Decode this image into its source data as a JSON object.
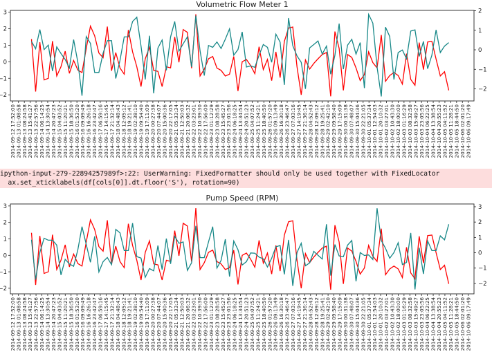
{
  "warning": {
    "line1": "ipython-input-279-22894257989f>:22: UserWarning: FixedFormatter should only be used together with FixedLocator",
    "line2": "  ax.set_xticklabels(df[cols[0]].dt.floor('S'), rotation=90)"
  },
  "xtick_labels": [
    "2014-09-12 17:52:00",
    "2014-09-13 01:08:58",
    "2014-09-13 08:24:58",
    "2014-09-13 15:41:27",
    "2014-09-13 22:57:56",
    "2014-09-14 06:14:25",
    "2014-09-14 13:30:54",
    "2014-09-14 20:47:23",
    "2014-09-15 04:03:52",
    "2014-09-15 11:20:21",
    "2014-09-15 18:36:50",
    "2014-09-16 01:53:20",
    "2014-09-16 09:09:49",
    "2014-09-16 16:26:18",
    "2014-09-16 23:42:47",
    "2014-09-17 06:59:16",
    "2014-09-17 14:15:45",
    "2014-09-17 21:32:14",
    "2014-09-18 04:48:43",
    "2014-09-18 12:05:12",
    "2014-09-18 19:21:41",
    "2014-09-19 02:38:10",
    "2014-09-19 09:54:40",
    "2014-09-19 17:11:09",
    "2014-09-20 00:27:38",
    "2014-09-20 07:44:07",
    "2014-09-20 15:00:36",
    "2014-09-20 22:17:05",
    "2014-09-21 05:33:34",
    "2014-09-21 12:50:03",
    "2014-09-21 20:06:32",
    "2014-09-22 03:23:01",
    "2014-09-22 10:39:30",
    "2014-09-22 17:56:00",
    "2014-09-23 01:12:29",
    "2014-09-23 08:28:58",
    "2014-09-23 15:45:27",
    "2014-09-23 23:01:56",
    "2014-09-24 06:18:25",
    "2014-09-24 13:34:54",
    "2014-09-24 20:51:23",
    "2014-09-25 04:07:52",
    "2014-09-25 11:24:21",
    "2014-09-25 18:40:50",
    "2014-09-26 01:57:20",
    "2014-09-26 09:13:49",
    "2014-09-26 16:30:18",
    "2014-09-26 23:46:47",
    "2014-09-27 07:03:16",
    "2014-09-27 14:19:45",
    "2014-09-27 21:36:14",
    "2014-09-28 04:52:43",
    "2014-09-28 12:09:12",
    "2014-09-28 19:25:41",
    "2014-09-29 02:42:10",
    "2014-09-29 09:58:40",
    "2014-09-29 17:15:09",
    "2014-09-30 00:31:38",
    "2014-09-30 07:48:07",
    "2014-09-30 15:04:36",
    "2014-09-30 22:21:05",
    "2014-10-01 05:37:34",
    "2014-10-01 12:54:03",
    "2014-10-01 20:10:32",
    "2014-10-02 03:27:01",
    "2014-10-02 10:43:30",
    "2014-10-02 18:00:00",
    "2014-10-03 01:16:29",
    "2014-10-03 08:32:58",
    "2014-10-03 15:49:27",
    "2014-10-03 23:05:56",
    "2014-10-04 06:22:25",
    "2014-10-04 13:38:54",
    "2014-10-04 20:55:23",
    "2014-10-05 04:11:52",
    "2014-10-05 11:28:21",
    "2014-10-05 18:44:50",
    "2014-10-06 02:01:20",
    "2014-10-06 09:17:49"
  ],
  "chart_data": [
    {
      "type": "line",
      "title": "Volumetric Flow Meter 1",
      "xlim": [
        -5,
        105
      ],
      "left_axis": {
        "ylim": [
          -2.37,
          3.11
        ],
        "ticks": [
          -2,
          -1,
          0,
          1,
          2,
          3
        ]
      },
      "right_axis": {
        "ylim": [
          -2.62,
          2.02
        ],
        "ticks": [
          -2,
          -1,
          0,
          1,
          2
        ]
      },
      "grid": false,
      "series": [
        {
          "axis": "left",
          "color": "#ff0000",
          "values": [
            1.37,
            -1.8,
            1.18,
            -1.1,
            -1.0,
            1.25,
            -0.86,
            -0.3,
            0.64,
            -0.7,
            0.08,
            -0.5,
            -0.65,
            0.8,
            2.16,
            1.57,
            0.53,
            0.25,
            2.13,
            -0.54,
            0.56,
            -0.38,
            -0.75,
            1.92,
            0.6,
            -0.3,
            -1.5,
            0.18,
            0.88,
            -0.52,
            -0.58,
            -1.5,
            -0.3,
            -0.37,
            1.5,
            -0.03,
            1.95,
            1.78,
            -0.39,
            2.87,
            -0.86,
            -0.45,
            0.18,
            0.32,
            -0.38,
            -0.52,
            -0.86,
            -0.75,
            0.32,
            -1.77,
            0,
            0.14,
            -0.23,
            -0.72,
            0.91,
            -0.47,
            0.14,
            -1.14,
            0.6,
            -0.96,
            1.23,
            2.04,
            2.1,
            -0.3,
            -2.0,
            0.11,
            -0.44,
            -0.1,
            0.18,
            0.44,
            0.56,
            -2.09,
            1.83,
            0.81,
            -1.73,
            0.44,
            0.26,
            -0.37,
            -1.14,
            -0.77,
            0.6,
            -0.05,
            -0.37,
            1.62,
            -1.18,
            -0.83,
            -0.65,
            -0.83,
            -1.35,
            0.49,
            -1.07,
            -1.42,
            1.16,
            -0.47,
            1.2,
            1.23,
            0.16,
            -0.86,
            -0.6,
            -1.73
          ]
        },
        {
          "axis": "right",
          "color": "#168787",
          "values": [
            0.43,
            0.05,
            1.04,
            0.01,
            0.24,
            -1.09,
            0.15,
            -0.19,
            -0.5,
            -0.93,
            0.52,
            -0.64,
            -2.35,
            0.68,
            0.33,
            -1.16,
            -1.16,
            -0.17,
            0.47,
            0.47,
            -1.47,
            -0.54,
            0.66,
            0.66,
            1.45,
            1.67,
            0.19,
            -1.52,
            0.72,
            -2.23,
            0.09,
            0.5,
            -1.05,
            0.66,
            1.45,
            -0.07,
            0.31,
            0.66,
            -0.88,
            1.75,
            -0.05,
            -1.32,
            0.22,
            0.13,
            0.4,
            0.07,
            0.54,
            1.07,
            -0.28,
            0.01,
            0.92,
            -0.88,
            -0.82,
            -0.9,
            -0.28,
            0.27,
            0.13,
            -0.64,
            0.8,
            0.39,
            -1.8,
            1.63,
            0.21,
            -0.31,
            -0.64,
            -2.0,
            0.1,
            0.27,
            0.45,
            -0.22,
            0.19,
            -1.25,
            -0.28,
            1.34,
            -0.99,
            0.24,
            0.54,
            -0.22,
            0.37,
            -1.96,
            1.81,
            1.37,
            -0.88,
            -2.39,
            1.16,
            0.68,
            -1.52,
            -0.14,
            -0.01,
            -0.46,
            0.96,
            1.02,
            -0.34,
            0.43,
            -0.97,
            -0.28,
            1.02,
            -0.14,
            0.19,
            0.37
          ]
        }
      ]
    },
    {
      "type": "line",
      "title": "Pump Speed (RPM)",
      "xlim": [
        -5,
        105
      ],
      "left_axis": {
        "ylim": [
          -2.34,
          3.12
        ],
        "ticks": [
          -2,
          -1,
          0,
          1,
          2,
          3
        ]
      },
      "right_axis": {
        "ylim": [
          -2.68,
          3.18
        ],
        "ticks": [
          -2,
          -1,
          0,
          1,
          2,
          3
        ]
      },
      "grid": false,
      "series": [
        {
          "axis": "left",
          "color": "#ff0000",
          "values": [
            1.37,
            -1.8,
            1.18,
            -1.1,
            -1.0,
            1.25,
            -0.86,
            -0.3,
            0.64,
            -0.7,
            0.08,
            -0.5,
            -0.65,
            0.8,
            2.16,
            1.57,
            0.53,
            0.25,
            2.13,
            -0.54,
            0.56,
            -0.38,
            -0.75,
            1.92,
            0.6,
            -0.3,
            -1.5,
            0.18,
            0.88,
            -0.52,
            -0.58,
            -1.5,
            -0.3,
            -0.37,
            1.5,
            -0.03,
            1.95,
            1.78,
            -0.39,
            2.87,
            -0.86,
            -0.45,
            0.18,
            0.32,
            -0.38,
            -0.52,
            -0.86,
            -0.75,
            0.32,
            -1.77,
            0,
            0.14,
            -0.23,
            -0.72,
            0.91,
            -0.47,
            0.14,
            -1.14,
            0.6,
            -0.96,
            1.23,
            2.04,
            2.1,
            -0.3,
            -2.0,
            0.11,
            -0.44,
            -0.1,
            0.18,
            0.44,
            0.56,
            -2.09,
            1.83,
            0.81,
            -1.73,
            0.44,
            0.26,
            -0.37,
            -1.14,
            -0.77,
            0.6,
            -0.05,
            -0.37,
            1.62,
            -1.18,
            -0.83,
            -0.65,
            -0.83,
            -1.35,
            0.49,
            -1.07,
            -1.42,
            1.16,
            -0.47,
            1.2,
            1.23,
            0.16,
            -0.86,
            -0.6,
            -1.73
          ]
        },
        {
          "axis": "right",
          "color": "#168787",
          "values": [
            0.85,
            -1.75,
            0.02,
            0.95,
            0.82,
            0.82,
            0.5,
            -1.45,
            -0.43,
            -0.73,
            -0.88,
            0.2,
            1.7,
            0.55,
            -0.62,
            1.07,
            -1.25,
            -0.58,
            -0.31,
            -0.78,
            1.52,
            1.3,
            0.14,
            0.14,
            1.93,
            -0.25,
            -0.35,
            -1.6,
            -1.03,
            -1.18,
            0.47,
            -1.1,
            0.92,
            -0.73,
            1.07,
            0.62,
            0.7,
            -1.15,
            -0.65,
            1.75,
            -0.32,
            -0.32,
            0.7,
            1.7,
            -1.0,
            -0.5,
            0.88,
            -1.55,
            0.77,
            0.2,
            -0.8,
            -0.58,
            -0.01,
            -0.03,
            -0.28,
            -0.4,
            -0.93,
            -0.36,
            0.39,
            0.47,
            -1.41,
            0.84,
            -2.16,
            0.01,
            0.62,
            -0.85,
            -0.66,
            0.09,
            -0.17,
            -0.41,
            1.86,
            -1.49,
            0.54,
            -0.21,
            -0.26,
            0.5,
            0.8,
            -1.86,
            0.01,
            -0.18,
            -0.14,
            -0.44,
            2.9,
            0.8,
            0.29,
            -0.36,
            0.01,
            0.65,
            -0.77,
            -0.63,
            1.29,
            -2.39,
            0.32,
            -1.38,
            0.77,
            0.14,
            0.14,
            1.1,
            0.84,
            1.86
          ]
        }
      ]
    }
  ]
}
